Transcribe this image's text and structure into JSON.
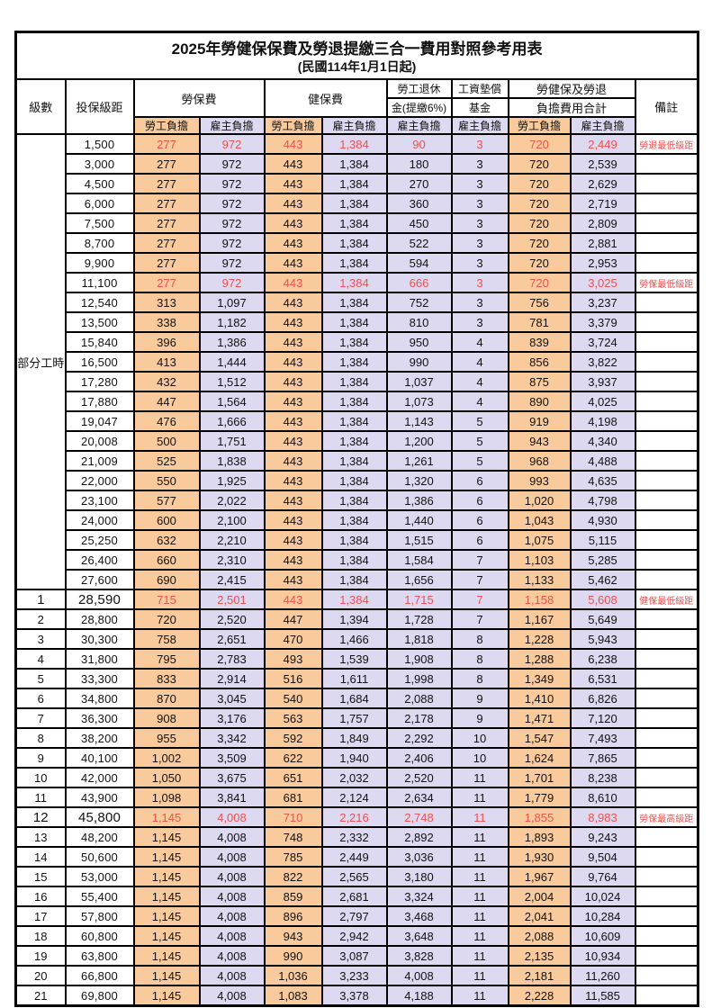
{
  "title": {
    "main": "2025年勞健保保費及勞退提繳三合一費用對照參考用表",
    "sub": "(民國114年1月1日起)"
  },
  "colors": {
    "employee_column_bg": "#F9CB9C",
    "employer_column_bg": "#DCD9F0",
    "highlight_text": "#EC5250",
    "border": "#000000"
  },
  "table": {
    "headers": {
      "level": "級數",
      "bracket": "投保級距",
      "labor": "勞保費",
      "health": "健保費",
      "pension_line1": "勞工退休",
      "pension_line2": "金(提繳6%)",
      "fund_line1": "工資墊償",
      "fund_line2": "基金",
      "total_line1": "勞健保及勞退",
      "total_line2": "負擔費用合計",
      "note": "備註",
      "employee": "勞工負擔",
      "employer": "雇主負擔"
    },
    "part_time_label": "部分工時",
    "part_time_span": 23,
    "rows": [
      {
        "level": "部分工時",
        "level_span": 23,
        "bracket": "1,500",
        "cells": [
          "277",
          "972",
          "443",
          "1,384",
          "90",
          "3",
          "720",
          "2,449"
        ],
        "note": "勞退最低級距",
        "highlight": true
      },
      {
        "bracket": "3,000",
        "cells": [
          "277",
          "972",
          "443",
          "1,384",
          "180",
          "3",
          "720",
          "2,539"
        ],
        "note": ""
      },
      {
        "bracket": "4,500",
        "cells": [
          "277",
          "972",
          "443",
          "1,384",
          "270",
          "3",
          "720",
          "2,629"
        ],
        "note": ""
      },
      {
        "bracket": "6,000",
        "cells": [
          "277",
          "972",
          "443",
          "1,384",
          "360",
          "3",
          "720",
          "2,719"
        ],
        "note": ""
      },
      {
        "bracket": "7,500",
        "cells": [
          "277",
          "972",
          "443",
          "1,384",
          "450",
          "3",
          "720",
          "2,809"
        ],
        "note": ""
      },
      {
        "bracket": "8,700",
        "cells": [
          "277",
          "972",
          "443",
          "1,384",
          "522",
          "3",
          "720",
          "2,881"
        ],
        "note": ""
      },
      {
        "bracket": "9,900",
        "cells": [
          "277",
          "972",
          "443",
          "1,384",
          "594",
          "3",
          "720",
          "2,953"
        ],
        "note": ""
      },
      {
        "bracket": "11,100",
        "cells": [
          "277",
          "972",
          "443",
          "1,384",
          "666",
          "3",
          "720",
          "3,025"
        ],
        "note": "勞保最低級距",
        "highlight": true
      },
      {
        "bracket": "12,540",
        "cells": [
          "313",
          "1,097",
          "443",
          "1,384",
          "752",
          "3",
          "756",
          "3,237"
        ],
        "note": ""
      },
      {
        "bracket": "13,500",
        "cells": [
          "338",
          "1,182",
          "443",
          "1,384",
          "810",
          "3",
          "781",
          "3,379"
        ],
        "note": ""
      },
      {
        "bracket": "15,840",
        "cells": [
          "396",
          "1,386",
          "443",
          "1,384",
          "950",
          "4",
          "839",
          "3,724"
        ],
        "note": ""
      },
      {
        "bracket": "16,500",
        "cells": [
          "413",
          "1,444",
          "443",
          "1,384",
          "990",
          "4",
          "856",
          "3,822"
        ],
        "note": ""
      },
      {
        "bracket": "17,280",
        "cells": [
          "432",
          "1,512",
          "443",
          "1,384",
          "1,037",
          "4",
          "875",
          "3,937"
        ],
        "note": ""
      },
      {
        "bracket": "17,880",
        "cells": [
          "447",
          "1,564",
          "443",
          "1,384",
          "1,073",
          "4",
          "890",
          "4,025"
        ],
        "note": ""
      },
      {
        "bracket": "19,047",
        "cells": [
          "476",
          "1,666",
          "443",
          "1,384",
          "1,143",
          "5",
          "919",
          "4,198"
        ],
        "note": ""
      },
      {
        "bracket": "20,008",
        "cells": [
          "500",
          "1,751",
          "443",
          "1,384",
          "1,200",
          "5",
          "943",
          "4,340"
        ],
        "note": ""
      },
      {
        "bracket": "21,009",
        "cells": [
          "525",
          "1,838",
          "443",
          "1,384",
          "1,261",
          "5",
          "968",
          "4,488"
        ],
        "note": ""
      },
      {
        "bracket": "22,000",
        "cells": [
          "550",
          "1,925",
          "443",
          "1,384",
          "1,320",
          "6",
          "993",
          "4,635"
        ],
        "note": ""
      },
      {
        "bracket": "23,100",
        "cells": [
          "577",
          "2,022",
          "443",
          "1,384",
          "1,386",
          "6",
          "1,020",
          "4,798"
        ],
        "note": ""
      },
      {
        "bracket": "24,000",
        "cells": [
          "600",
          "2,100",
          "443",
          "1,384",
          "1,440",
          "6",
          "1,043",
          "4,930"
        ],
        "note": ""
      },
      {
        "bracket": "25,250",
        "cells": [
          "632",
          "2,210",
          "443",
          "1,384",
          "1,515",
          "6",
          "1,075",
          "5,115"
        ],
        "note": ""
      },
      {
        "bracket": "26,400",
        "cells": [
          "660",
          "2,310",
          "443",
          "1,384",
          "1,584",
          "7",
          "1,103",
          "5,285"
        ],
        "note": ""
      },
      {
        "bracket": "27,600",
        "cells": [
          "690",
          "2,415",
          "443",
          "1,384",
          "1,656",
          "7",
          "1,133",
          "5,462"
        ],
        "note": ""
      },
      {
        "level": "1",
        "bracket": "28,590",
        "cells": [
          "715",
          "2,501",
          "443",
          "1,384",
          "1,715",
          "7",
          "1,158",
          "5,608"
        ],
        "note": "健保最低級距",
        "highlight": true,
        "emphasis": true
      },
      {
        "level": "2",
        "bracket": "28,800",
        "cells": [
          "720",
          "2,520",
          "447",
          "1,394",
          "1,728",
          "7",
          "1,167",
          "5,649"
        ],
        "note": ""
      },
      {
        "level": "3",
        "bracket": "30,300",
        "cells": [
          "758",
          "2,651",
          "470",
          "1,466",
          "1,818",
          "8",
          "1,228",
          "5,943"
        ],
        "note": ""
      },
      {
        "level": "4",
        "bracket": "31,800",
        "cells": [
          "795",
          "2,783",
          "493",
          "1,539",
          "1,908",
          "8",
          "1,288",
          "6,238"
        ],
        "note": ""
      },
      {
        "level": "5",
        "bracket": "33,300",
        "cells": [
          "833",
          "2,914",
          "516",
          "1,611",
          "1,998",
          "8",
          "1,349",
          "6,531"
        ],
        "note": ""
      },
      {
        "level": "6",
        "bracket": "34,800",
        "cells": [
          "870",
          "3,045",
          "540",
          "1,684",
          "2,088",
          "9",
          "1,410",
          "6,826"
        ],
        "note": ""
      },
      {
        "level": "7",
        "bracket": "36,300",
        "cells": [
          "908",
          "3,176",
          "563",
          "1,757",
          "2,178",
          "9",
          "1,471",
          "7,120"
        ],
        "note": ""
      },
      {
        "level": "8",
        "bracket": "38,200",
        "cells": [
          "955",
          "3,342",
          "592",
          "1,849",
          "2,292",
          "10",
          "1,547",
          "7,493"
        ],
        "note": ""
      },
      {
        "level": "9",
        "bracket": "40,100",
        "cells": [
          "1,002",
          "3,509",
          "622",
          "1,940",
          "2,406",
          "10",
          "1,624",
          "7,865"
        ],
        "note": ""
      },
      {
        "level": "10",
        "bracket": "42,000",
        "cells": [
          "1,050",
          "3,675",
          "651",
          "2,032",
          "2,520",
          "11",
          "1,701",
          "8,238"
        ],
        "note": ""
      },
      {
        "level": "11",
        "bracket": "43,900",
        "cells": [
          "1,098",
          "3,841",
          "681",
          "2,124",
          "2,634",
          "11",
          "1,779",
          "8,610"
        ],
        "note": ""
      },
      {
        "level": "12",
        "bracket": "45,800",
        "cells": [
          "1,145",
          "4,008",
          "710",
          "2,216",
          "2,748",
          "11",
          "1,855",
          "8,983"
        ],
        "note": "勞保最高級距",
        "highlight": true,
        "emphasis": true
      },
      {
        "level": "13",
        "bracket": "48,200",
        "cells": [
          "1,145",
          "4,008",
          "748",
          "2,332",
          "2,892",
          "11",
          "1,893",
          "9,243"
        ],
        "note": ""
      },
      {
        "level": "14",
        "bracket": "50,600",
        "cells": [
          "1,145",
          "4,008",
          "785",
          "2,449",
          "3,036",
          "11",
          "1,930",
          "9,504"
        ],
        "note": ""
      },
      {
        "level": "15",
        "bracket": "53,000",
        "cells": [
          "1,145",
          "4,008",
          "822",
          "2,565",
          "3,180",
          "11",
          "1,967",
          "9,764"
        ],
        "note": ""
      },
      {
        "level": "16",
        "bracket": "55,400",
        "cells": [
          "1,145",
          "4,008",
          "859",
          "2,681",
          "3,324",
          "11",
          "2,004",
          "10,024"
        ],
        "note": ""
      },
      {
        "level": "17",
        "bracket": "57,800",
        "cells": [
          "1,145",
          "4,008",
          "896",
          "2,797",
          "3,468",
          "11",
          "2,041",
          "10,284"
        ],
        "note": ""
      },
      {
        "level": "18",
        "bracket": "60,800",
        "cells": [
          "1,145",
          "4,008",
          "943",
          "2,942",
          "3,648",
          "11",
          "2,088",
          "10,609"
        ],
        "note": ""
      },
      {
        "level": "19",
        "bracket": "63,800",
        "cells": [
          "1,145",
          "4,008",
          "990",
          "3,087",
          "3,828",
          "11",
          "2,135",
          "10,934"
        ],
        "note": ""
      },
      {
        "level": "20",
        "bracket": "66,800",
        "cells": [
          "1,145",
          "4,008",
          "1,036",
          "3,233",
          "4,008",
          "11",
          "2,181",
          "11,260"
        ],
        "note": ""
      },
      {
        "level": "21",
        "bracket": "69,800",
        "cells": [
          "1,145",
          "4,008",
          "1,083",
          "3,378",
          "4,188",
          "11",
          "2,228",
          "11,585"
        ],
        "note": ""
      }
    ]
  }
}
